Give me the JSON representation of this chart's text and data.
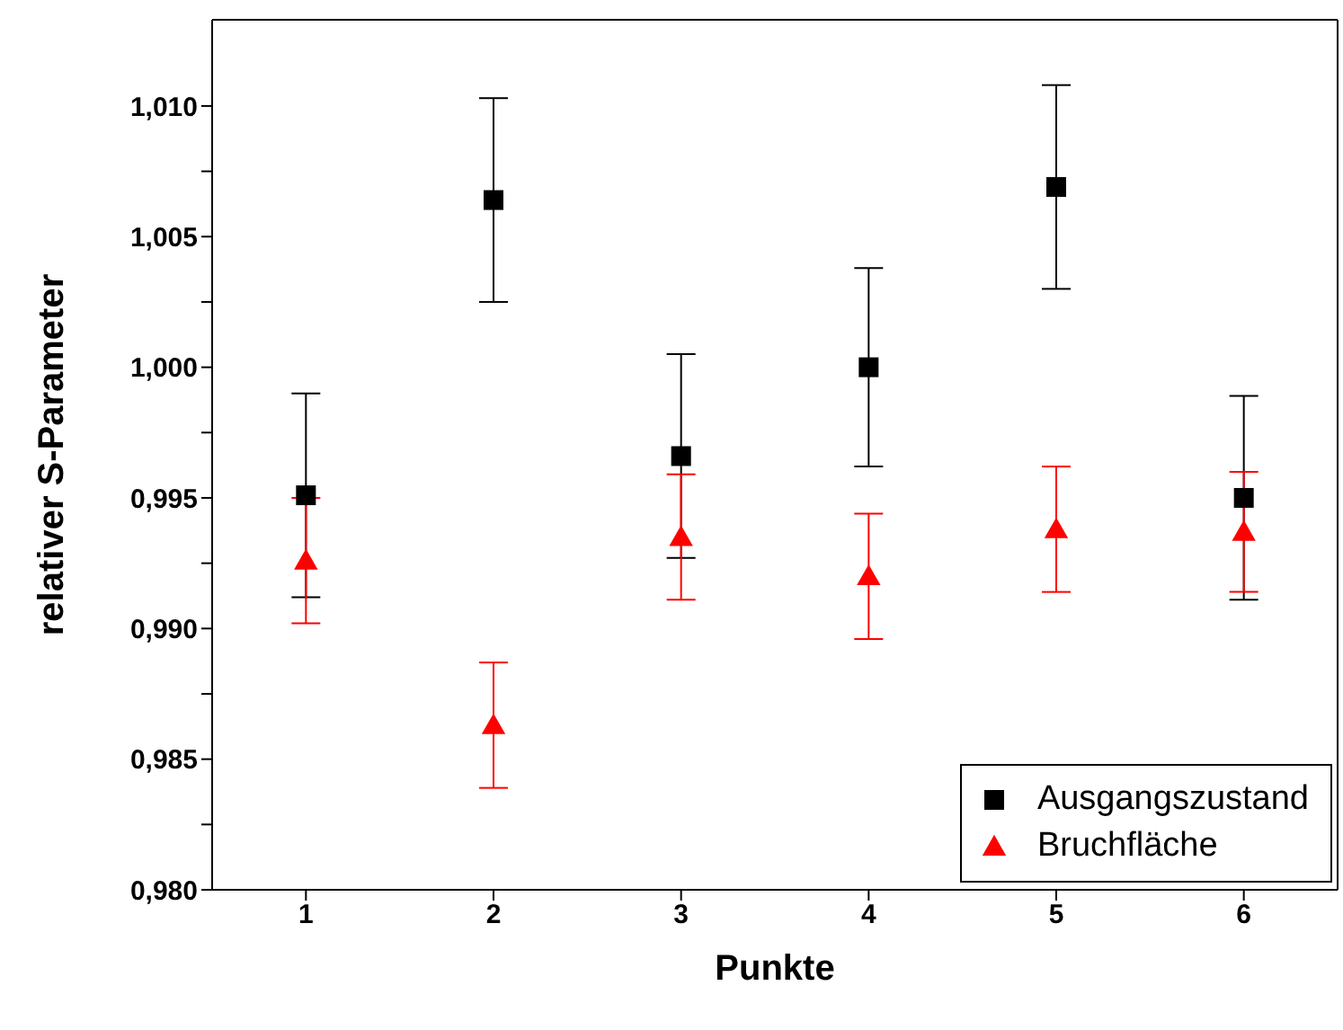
{
  "chart_data": {
    "type": "scatter",
    "xlabel": "Punkte",
    "ylabel": "relativer S-Parameter",
    "x": [
      1,
      2,
      3,
      4,
      5,
      6
    ],
    "xlim": [
      0.5,
      6.5
    ],
    "xticks": [
      1,
      2,
      3,
      4,
      5,
      6
    ],
    "ylim": [
      0.98,
      1.0133
    ],
    "yticks": [
      {
        "value": 0.98,
        "label": "0,980"
      },
      {
        "value": 0.9825,
        "label": null
      },
      {
        "value": 0.985,
        "label": "0,985"
      },
      {
        "value": 0.9875,
        "label": null
      },
      {
        "value": 0.99,
        "label": "0,990"
      },
      {
        "value": 0.9925,
        "label": null
      },
      {
        "value": 0.995,
        "label": "0,995"
      },
      {
        "value": 0.9975,
        "label": null
      },
      {
        "value": 1.0,
        "label": "1,000"
      },
      {
        "value": 1.0025,
        "label": null
      },
      {
        "value": 1.005,
        "label": "1,005"
      },
      {
        "value": 1.0075,
        "label": null
      },
      {
        "value": 1.01,
        "label": "1,010"
      }
    ],
    "grid": false,
    "legend": "bottom right",
    "series": [
      {
        "name": "Ausgangszustand",
        "color": "#000000",
        "marker": "square",
        "values": [
          0.9951,
          1.0064,
          0.9966,
          1.0,
          1.0069,
          0.995
        ],
        "errors": [
          0.0039,
          0.0039,
          0.0039,
          0.0038,
          0.0039,
          0.0039
        ]
      },
      {
        "name": "Bruchfläche",
        "color": "#ff0000",
        "marker": "triangle",
        "values": [
          0.9926,
          0.9863,
          0.9935,
          0.992,
          0.9938,
          0.9937
        ],
        "errors": [
          0.0024,
          0.0024,
          0.0024,
          0.0024,
          0.0024,
          0.0023
        ]
      }
    ]
  }
}
